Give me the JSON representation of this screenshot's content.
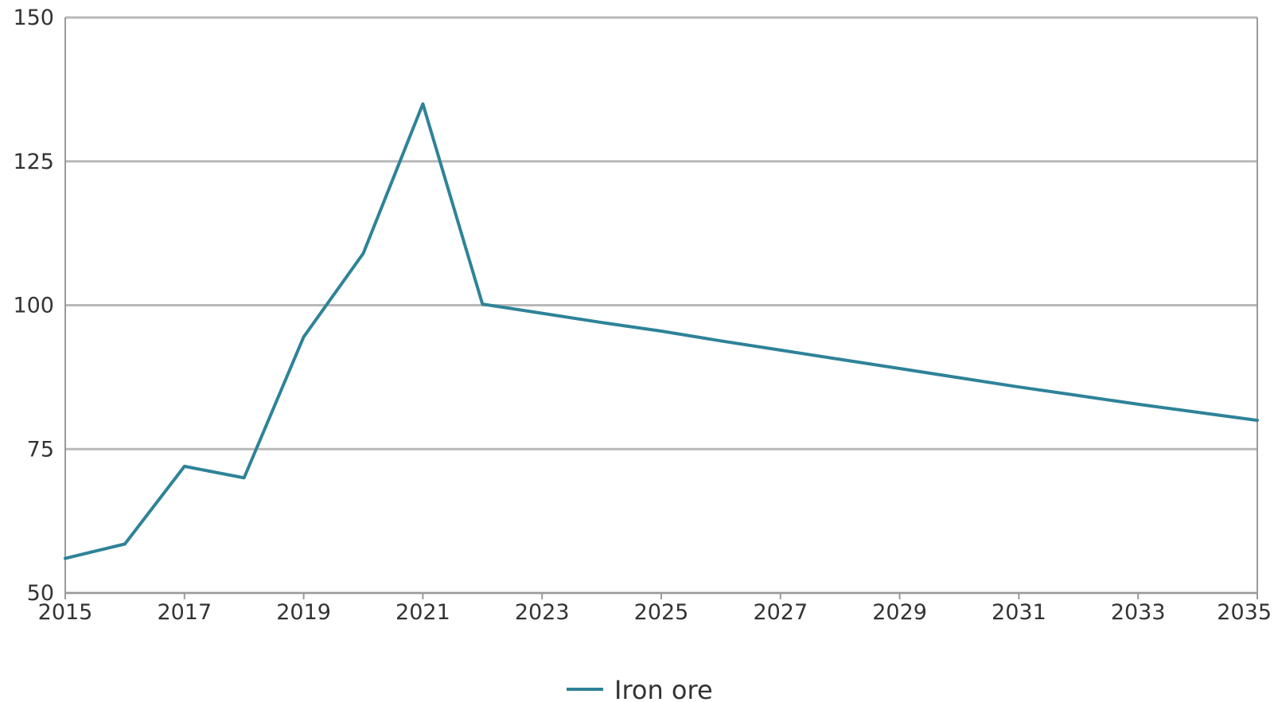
{
  "chart_data": {
    "type": "line",
    "x": [
      2015,
      2016,
      2017,
      2018,
      2019,
      2020,
      2021,
      2022,
      2023,
      2024,
      2025,
      2026,
      2027,
      2028,
      2029,
      2030,
      2031,
      2032,
      2033,
      2034,
      2035
    ],
    "series": [
      {
        "name": "Iron ore",
        "color": "#2e8398",
        "values": [
          56,
          58.5,
          72,
          70,
          94.5,
          109,
          135,
          100.2,
          98.6,
          97,
          95.5,
          93.8,
          92.2,
          90.6,
          89,
          87.4,
          85.8,
          84.3,
          82.8,
          81.4,
          80
        ]
      }
    ],
    "xlim": [
      2015,
      2035
    ],
    "ylim": [
      50,
      150
    ],
    "x_ticks": [
      "2015",
      "2017",
      "2019",
      "2021",
      "2023",
      "2025",
      "2027",
      "2029",
      "2031",
      "2033",
      "2035"
    ],
    "y_ticks": [
      "50",
      "75",
      "100",
      "125",
      "150"
    ],
    "grid": "horizontal",
    "legend_position": "bottom-center",
    "title": "",
    "xlabel": "",
    "ylabel": ""
  }
}
